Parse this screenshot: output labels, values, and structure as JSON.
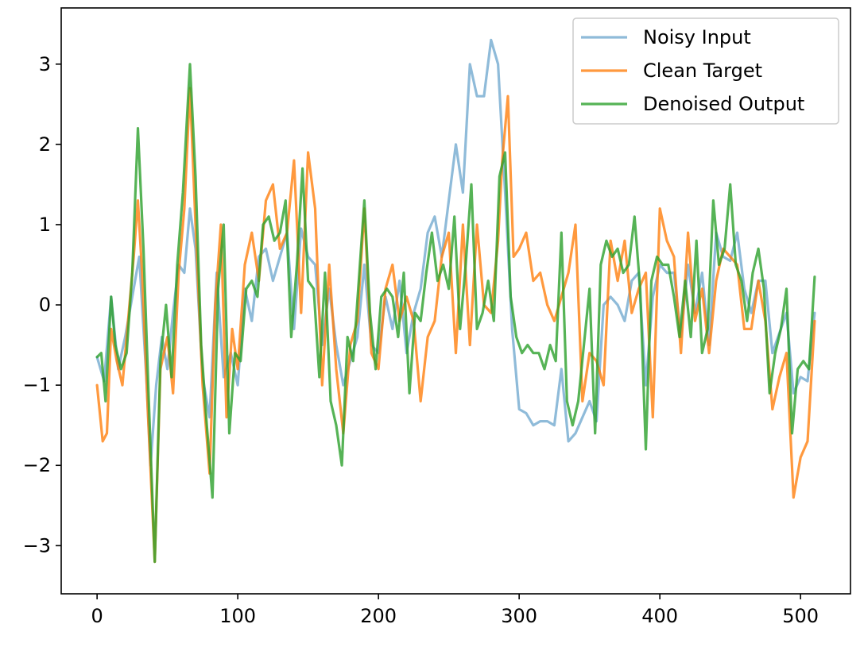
{
  "chart_data": {
    "type": "line",
    "title": "",
    "xlabel": "",
    "ylabel": "",
    "xlim": [
      -25.5,
      535.5
    ],
    "ylim": [
      -3.6,
      3.7
    ],
    "grid": false,
    "legend_position": "top-right",
    "x_ticks": [
      0,
      100,
      200,
      300,
      400,
      500
    ],
    "x_tick_labels": [
      "0",
      "100",
      "200",
      "300",
      "400",
      "500"
    ],
    "y_ticks": [
      -3,
      -2,
      -1,
      0,
      1,
      2,
      3
    ],
    "y_tick_labels": [
      "−3",
      "−2",
      "−1",
      "0",
      "1",
      "2",
      "3"
    ],
    "series": [
      {
        "name": "Noisy Input",
        "color": "#1f77b4",
        "opacity": 0.5,
        "x": [
          0,
          5,
          10,
          15,
          20,
          25,
          30,
          35,
          38,
          42,
          46,
          50,
          54,
          58,
          62,
          66,
          70,
          75,
          80,
          85,
          90,
          95,
          100,
          105,
          110,
          115,
          120,
          125,
          130,
          135,
          140,
          145,
          150,
          155,
          160,
          165,
          170,
          175,
          180,
          185,
          190,
          195,
          200,
          205,
          210,
          215,
          220,
          225,
          230,
          235,
          240,
          245,
          250,
          255,
          260,
          265,
          270,
          275,
          280,
          285,
          290,
          295,
          300,
          305,
          310,
          315,
          320,
          325,
          330,
          335,
          340,
          345,
          350,
          355,
          360,
          365,
          370,
          375,
          380,
          385,
          390,
          395,
          400,
          405,
          410,
          415,
          420,
          425,
          430,
          435,
          440,
          445,
          450,
          455,
          460,
          465,
          470,
          475,
          480,
          485,
          490,
          495,
          500,
          505,
          510
        ],
        "values": [
          -0.65,
          -0.95,
          0.1,
          -0.8,
          -0.4,
          0.1,
          0.6,
          -0.9,
          -2.0,
          -1.0,
          -0.4,
          -0.8,
          -0.1,
          0.5,
          0.4,
          1.2,
          0.7,
          -0.9,
          -1.4,
          0.4,
          -0.9,
          -0.6,
          -1.0,
          0.2,
          -0.2,
          0.6,
          0.7,
          0.3,
          0.6,
          0.9,
          -0.3,
          0.95,
          0.6,
          0.5,
          -0.5,
          0.2,
          -0.5,
          -1.0,
          -0.7,
          -0.4,
          0.5,
          -0.5,
          -0.6,
          0.1,
          -0.3,
          0.3,
          -0.6,
          -0.1,
          0.2,
          0.9,
          1.1,
          0.6,
          1.3,
          2.0,
          1.4,
          3.0,
          2.6,
          2.6,
          3.3,
          3.0,
          1.4,
          -0.3,
          -1.3,
          -1.35,
          -1.5,
          -1.45,
          -1.45,
          -1.5,
          -0.8,
          -1.7,
          -1.6,
          -1.4,
          -1.2,
          -1.45,
          0.0,
          0.1,
          0.0,
          -0.2,
          0.3,
          0.4,
          -1.0,
          0.1,
          0.5,
          0.4,
          0.4,
          -0.4,
          0.5,
          -0.1,
          0.4,
          -0.5,
          0.9,
          0.6,
          0.55,
          0.9,
          0.2,
          -0.1,
          0.3,
          0.3,
          -0.6,
          -0.35,
          -0.1,
          -1.1,
          -0.9,
          -0.95,
          -0.1
        ]
      },
      {
        "name": "Clean Target",
        "color": "#ff7f0e",
        "opacity": 0.8,
        "x": [
          0,
          4,
          7,
          10,
          14,
          18,
          22,
          26,
          29,
          32,
          36,
          41,
          45,
          50,
          54,
          58,
          62,
          66,
          70,
          75,
          80,
          84,
          88,
          92,
          96,
          100,
          105,
          110,
          115,
          120,
          125,
          130,
          135,
          140,
          145,
          150,
          155,
          160,
          165,
          170,
          175,
          180,
          185,
          190,
          195,
          200,
          205,
          210,
          215,
          220,
          225,
          230,
          235,
          240,
          245,
          250,
          255,
          260,
          265,
          270,
          275,
          280,
          285,
          288,
          292,
          296,
          300,
          305,
          310,
          315,
          320,
          325,
          330,
          335,
          340,
          345,
          350,
          355,
          360,
          365,
          370,
          375,
          380,
          385,
          390,
          395,
          400,
          405,
          410,
          415,
          420,
          425,
          430,
          435,
          440,
          445,
          450,
          455,
          460,
          465,
          470,
          475,
          480,
          485,
          490,
          495,
          500,
          505,
          510
        ],
        "values": [
          -1.0,
          -1.7,
          -1.6,
          -0.3,
          -0.7,
          -1.0,
          -0.2,
          0.6,
          1.3,
          0.4,
          -1.3,
          -3.2,
          -0.8,
          -0.4,
          -1.1,
          0.4,
          1.2,
          2.7,
          1.0,
          -1.0,
          -2.1,
          0.0,
          1.0,
          -1.4,
          -0.3,
          -0.8,
          0.5,
          0.9,
          0.3,
          1.3,
          1.5,
          0.7,
          0.9,
          1.8,
          -0.1,
          1.9,
          1.2,
          -1.0,
          0.5,
          -0.8,
          -1.6,
          -0.5,
          -0.2,
          1.2,
          -0.6,
          -0.8,
          0.2,
          0.5,
          -0.2,
          0.1,
          -0.2,
          -1.2,
          -0.4,
          -0.2,
          0.6,
          0.9,
          -0.6,
          1.0,
          -0.5,
          1.0,
          0.0,
          -0.1,
          0.8,
          1.8,
          2.6,
          0.6,
          0.7,
          0.9,
          0.3,
          0.4,
          0.0,
          -0.2,
          0.1,
          0.4,
          1.0,
          -1.2,
          -0.6,
          -0.7,
          -1.0,
          0.8,
          0.3,
          0.8,
          -0.1,
          0.2,
          0.4,
          -1.4,
          1.2,
          0.8,
          0.6,
          -0.6,
          0.9,
          -0.2,
          0.2,
          -0.6,
          0.3,
          0.7,
          0.6,
          0.5,
          -0.3,
          -0.3,
          0.3,
          -0.2,
          -1.3,
          -0.9,
          -0.6,
          -2.4,
          -1.9,
          -1.7,
          -0.2
        ]
      },
      {
        "name": "Denoised Output",
        "color": "#2ca02c",
        "opacity": 0.8,
        "x": [
          0,
          3,
          6,
          10,
          13,
          17,
          21,
          25,
          29,
          33,
          37,
          41,
          45,
          49,
          53,
          57,
          61,
          66,
          70,
          74,
          78,
          82,
          86,
          90,
          94,
          98,
          102,
          106,
          110,
          114,
          118,
          122,
          126,
          130,
          134,
          138,
          142,
          146,
          150,
          154,
          158,
          162,
          166,
          170,
          174,
          178,
          182,
          186,
          190,
          194,
          198,
          202,
          206,
          210,
          214,
          218,
          222,
          226,
          230,
          234,
          238,
          242,
          246,
          250,
          254,
          258,
          262,
          266,
          270,
          274,
          278,
          282,
          286,
          290,
          294,
          298,
          302,
          306,
          310,
          314,
          318,
          322,
          326,
          330,
          334,
          338,
          342,
          346,
          350,
          354,
          358,
          362,
          366,
          370,
          374,
          378,
          382,
          386,
          390,
          394,
          398,
          402,
          406,
          410,
          414,
          418,
          422,
          426,
          430,
          434,
          438,
          442,
          446,
          450,
          454,
          458,
          462,
          466,
          470,
          474,
          478,
          482,
          486,
          490,
          494,
          498,
          502,
          506,
          510
        ],
        "values": [
          -0.65,
          -0.6,
          -1.2,
          0.1,
          -0.5,
          -0.8,
          -0.6,
          0.4,
          2.2,
          0.7,
          -1.3,
          -3.2,
          -0.7,
          0.0,
          -0.9,
          0.5,
          1.4,
          3.0,
          1.6,
          -0.5,
          -1.5,
          -2.4,
          0.2,
          1.0,
          -1.6,
          -0.6,
          -0.7,
          0.2,
          0.3,
          0.1,
          1.0,
          1.1,
          0.8,
          0.9,
          1.3,
          -0.4,
          0.5,
          1.7,
          0.3,
          0.2,
          -0.9,
          0.4,
          -1.2,
          -1.5,
          -2.0,
          -0.4,
          -0.7,
          0.3,
          1.3,
          -0.1,
          -0.8,
          0.1,
          0.2,
          0.1,
          -0.4,
          0.4,
          -1.1,
          -0.1,
          -0.2,
          0.4,
          0.9,
          0.3,
          0.5,
          0.2,
          1.1,
          -0.3,
          0.5,
          1.5,
          -0.3,
          -0.1,
          0.3,
          -0.2,
          1.6,
          1.9,
          0.1,
          -0.4,
          -0.6,
          -0.5,
          -0.6,
          -0.6,
          -0.8,
          -0.5,
          -0.7,
          0.9,
          -1.2,
          -1.5,
          -1.2,
          -0.5,
          0.2,
          -1.6,
          0.5,
          0.8,
          0.6,
          0.7,
          0.4,
          0.5,
          1.1,
          0.2,
          -1.8,
          0.3,
          0.6,
          0.5,
          0.5,
          0.1,
          -0.4,
          0.3,
          -0.4,
          0.8,
          -0.6,
          -0.3,
          1.3,
          0.5,
          0.7,
          1.5,
          0.5,
          0.3,
          -0.2,
          0.4,
          0.7,
          0.2,
          -1.1,
          -0.6,
          -0.3,
          0.2,
          -1.6,
          -0.8,
          -0.7,
          -0.8,
          0.35
        ]
      }
    ]
  }
}
